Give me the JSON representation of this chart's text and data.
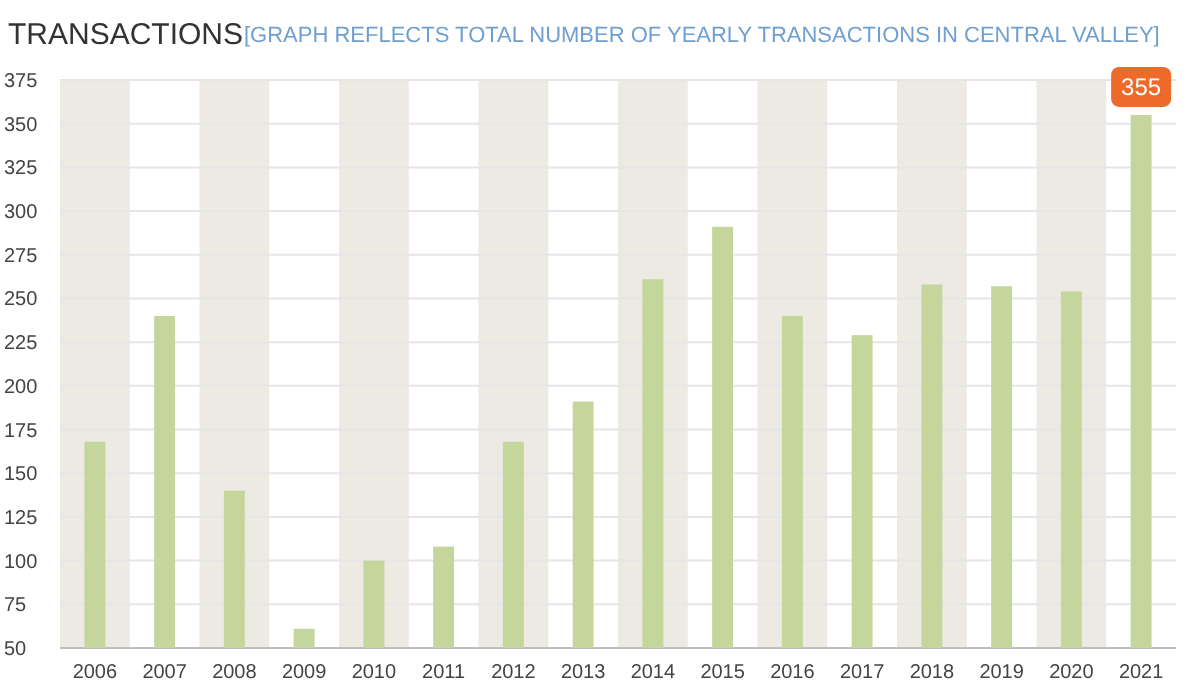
{
  "chart_data": {
    "type": "bar",
    "title": "TRANSACTIONS",
    "subtitle": "[GRAPH REFLECTS TOTAL NUMBER OF YEARLY TRANSACTIONS IN CENTRAL VALLEY]",
    "categories": [
      "2006",
      "2007",
      "2008",
      "2009",
      "2010",
      "2011",
      "2012",
      "2013",
      "2014",
      "2015",
      "2016",
      "2017",
      "2018",
      "2019",
      "2020",
      "2021"
    ],
    "values": [
      168,
      240,
      140,
      61,
      100,
      108,
      168,
      191,
      261,
      291,
      240,
      229,
      258,
      257,
      254,
      355
    ],
    "value_labels": [
      null,
      null,
      null,
      null,
      null,
      null,
      null,
      null,
      null,
      null,
      null,
      null,
      null,
      null,
      null,
      "355"
    ],
    "color": "#c4d69c",
    "ylim": [
      50,
      375
    ],
    "yticks": [
      50,
      75,
      100,
      125,
      150,
      175,
      200,
      225,
      250,
      275,
      300,
      325,
      350,
      375
    ],
    "grid": "y",
    "bands": [
      {
        "axis": "x",
        "from": "2006",
        "to": "2006",
        "color": "#ede9e3"
      },
      {
        "axis": "x",
        "from": "2008",
        "to": "2008",
        "color": "#ede9e3"
      },
      {
        "axis": "x",
        "from": "2010",
        "to": "2010",
        "color": "#ede9e3"
      },
      {
        "axis": "x",
        "from": "2012",
        "to": "2012",
        "color": "#ede9e3"
      },
      {
        "axis": "x",
        "from": "2014",
        "to": "2014",
        "color": "#ede9e3"
      },
      {
        "axis": "x",
        "from": "2016",
        "to": "2016",
        "color": "#ede9e3"
      },
      {
        "axis": "x",
        "from": "2018",
        "to": "2018",
        "color": "#ede9e3"
      },
      {
        "axis": "x",
        "from": "2020",
        "to": "2020",
        "color": "#ede9e3"
      }
    ]
  }
}
